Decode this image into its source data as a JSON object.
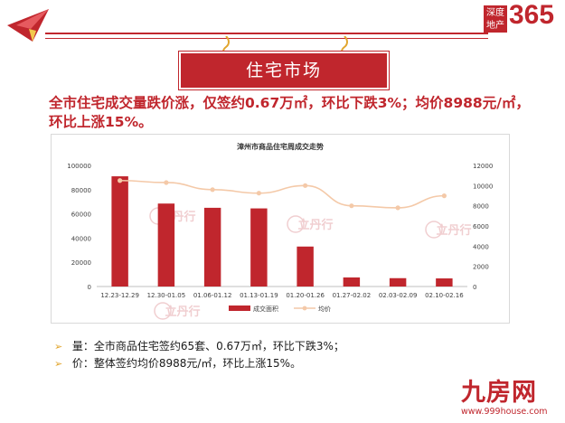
{
  "brand": {
    "box_line1": "深度",
    "box_line2": "地产",
    "number": "365"
  },
  "banner": {
    "title": "住宅市场"
  },
  "headline": {
    "line1": "全市住宅成交量跌价涨，仅签约0.67万㎡，环比下跌3%；均价8988元/㎡，",
    "line2": "环比上涨15%。"
  },
  "chart_data": {
    "type": "bar",
    "title": "漳州市商品住宅周成交走势",
    "categories": [
      "12.23-12.29",
      "12.30-01.05",
      "01.06-01.12",
      "01.13-01.19",
      "01.20-01.26",
      "01.27-02.02",
      "02.03-02.09",
      "02.10-02.16"
    ],
    "series": [
      {
        "name": "成交面积",
        "type": "bar",
        "axis": "left",
        "color": "#c0262d",
        "values": [
          91000,
          68500,
          65000,
          64500,
          33000,
          7500,
          6900,
          6700
        ]
      },
      {
        "name": "均价",
        "type": "line",
        "axis": "right",
        "color": "#f4c9a8",
        "values": [
          10500,
          10300,
          9600,
          9250,
          10000,
          8000,
          7800,
          8988
        ]
      }
    ],
    "ylim_left": [
      0,
      100000
    ],
    "yticks_left": [
      "0",
      "20000",
      "40000",
      "60000",
      "80000",
      "100000"
    ],
    "ylim_right": [
      0,
      12000
    ],
    "yticks_right": [
      "0",
      "2000",
      "4000",
      "6000",
      "8000",
      "10000",
      "12000"
    ],
    "grid": false,
    "legend": "bottom"
  },
  "bullets": [
    {
      "marker": "➢",
      "text": "量：全市商品住宅签约65套、0.67万㎡，环比下跌3%；"
    },
    {
      "marker": "➢",
      "text": "价：整体签约均价8988元/㎡，环比上涨15%。"
    }
  ],
  "watermark": {
    "name": "立丹行",
    "sub": "LI DAN HANG"
  },
  "footer": {
    "main": "九房网",
    "url": "www.999house.com"
  },
  "colors": {
    "accent": "#c0262d",
    "line": "#f4c9a8",
    "bullet_marker": "#e1a52d"
  }
}
